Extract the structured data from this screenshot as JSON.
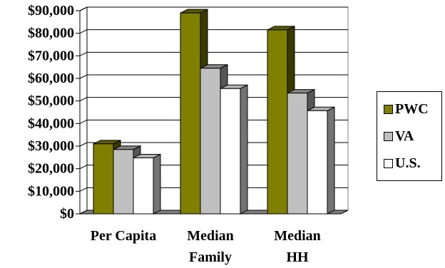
{
  "chart_data": {
    "type": "bar",
    "categories": [
      [
        "Per Capita"
      ],
      [
        "Median",
        "Family"
      ],
      [
        "Median",
        "HH"
      ]
    ],
    "series": [
      {
        "name": "PWC",
        "values": [
          31000,
          89000,
          81500
        ],
        "color": "#808000"
      },
      {
        "name": "VA",
        "values": [
          28500,
          64500,
          53500
        ],
        "color": "#c0c0c0"
      },
      {
        "name": "U.S.",
        "values": [
          24800,
          55500,
          45700
        ],
        "color": "#ffffff"
      }
    ],
    "yticks": [
      "$0",
      "$10,000",
      "$20,000",
      "$30,000",
      "$40,000",
      "$50,000",
      "$60,000",
      "$70,000",
      "$80,000",
      "$90,000"
    ],
    "ylim": [
      0,
      90000
    ],
    "grid": true,
    "legend_position": "right"
  }
}
